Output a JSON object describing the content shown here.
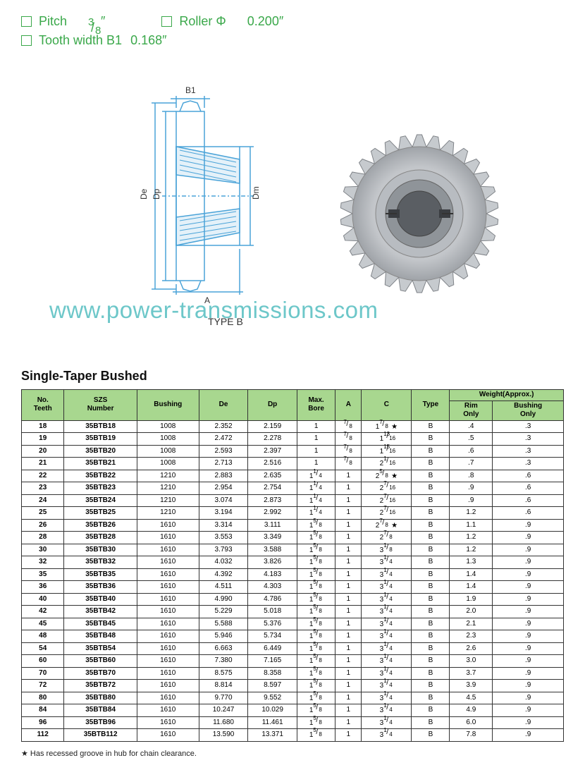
{
  "specs": {
    "pitch_label": "Pitch",
    "pitch_num": "3",
    "pitch_den": "8",
    "pitch_suffix": "″",
    "roller_label": "Roller Φ",
    "roller_value": "0.200″",
    "tooth_label": "Tooth width B1",
    "tooth_value": "0.168″"
  },
  "watermark": "www.power-transmissions.com",
  "type_label": "TYPE B",
  "section_title": "Single-Taper Bushed",
  "drawing": {
    "labels": {
      "B1": "B1",
      "De": "De",
      "Dp": "Dp",
      "Dm": "Dm",
      "A": "A"
    },
    "outline_color": "#4aa3d8",
    "hatch_color": "#4aa3d8"
  },
  "sprocket": {
    "fill": "#c9ccd0",
    "stroke": "#7a7e84",
    "boss": "#9ea2a7"
  },
  "table": {
    "header_bg": "#a8d78f",
    "weight_header": "Weight(Approx.)",
    "columns": [
      "No.\nTeeth",
      "SZS\nNumber",
      "Bushing",
      "De",
      "Dp",
      "Max.\nBore",
      "A",
      "C",
      "Type",
      "Rim\nOnly",
      "Bushing\nOnly"
    ],
    "groups": [
      [
        {
          "teeth": "18",
          "szs": "35BTB18",
          "bush": "1008",
          "de": "2.352",
          "dp": "2.159",
          "maxb": "1",
          "a": "7/8",
          "c": "1 7/8 ★",
          "type": "B",
          "rim": ".4",
          "bonly": ".3"
        },
        {
          "teeth": "19",
          "szs": "35BTB19",
          "bush": "1008",
          "de": "2.472",
          "dp": "2.278",
          "maxb": "1",
          "a": "7/8",
          "c": "1 13/16",
          "type": "B",
          "rim": ".5",
          "bonly": ".3"
        },
        {
          "teeth": "20",
          "szs": "35BTB20",
          "bush": "1008",
          "de": "2.593",
          "dp": "2.397",
          "maxb": "1",
          "a": "7/8",
          "c": "1 15/16",
          "type": "B",
          "rim": ".6",
          "bonly": ".3"
        },
        {
          "teeth": "21",
          "szs": "35BTB21",
          "bush": "1008",
          "de": "2.713",
          "dp": "2.516",
          "maxb": "1",
          "a": "7/8",
          "c": "2 1/16",
          "type": "B",
          "rim": ".7",
          "bonly": ".3"
        }
      ],
      [
        {
          "teeth": "22",
          "szs": "35BTB22",
          "bush": "1210",
          "de": "2.883",
          "dp": "2.635",
          "maxb": "1 1/4",
          "a": "1",
          "c": "2 5/8 ★",
          "type": "B",
          "rim": ".8",
          "bonly": ".6"
        },
        {
          "teeth": "23",
          "szs": "35BTB23",
          "bush": "1210",
          "de": "2.954",
          "dp": "2.754",
          "maxb": "1 1/4",
          "a": "1",
          "c": "2 7/16",
          "type": "B",
          "rim": ".9",
          "bonly": ".6"
        },
        {
          "teeth": "24",
          "szs": "35BTB24",
          "bush": "1210",
          "de": "3.074",
          "dp": "2.873",
          "maxb": "1 1/4",
          "a": "1",
          "c": "2 7/16",
          "type": "B",
          "rim": ".9",
          "bonly": ".6"
        },
        {
          "teeth": "25",
          "szs": "35BTB25",
          "bush": "1210",
          "de": "3.194",
          "dp": "2.992",
          "maxb": "1 1/4",
          "a": "1",
          "c": "2 7/16",
          "type": "B",
          "rim": "1.2",
          "bonly": ".6"
        }
      ],
      [
        {
          "teeth": "26",
          "szs": "35BTB26",
          "bush": "1610",
          "de": "3.314",
          "dp": "3.111",
          "maxb": "1 5/8",
          "a": "1",
          "c": "2 7/8 ★",
          "type": "B",
          "rim": "1.1",
          "bonly": ".9"
        },
        {
          "teeth": "28",
          "szs": "35BTB28",
          "bush": "1610",
          "de": "3.553",
          "dp": "3.349",
          "maxb": "1 5/8",
          "a": "1",
          "c": "2 7/8",
          "type": "B",
          "rim": "1.2",
          "bonly": ".9"
        },
        {
          "teeth": "30",
          "szs": "35BTB30",
          "bush": "1610",
          "de": "3.793",
          "dp": "3.588",
          "maxb": "1 5/8",
          "a": "1",
          "c": "3 1/8",
          "type": "B",
          "rim": "1.2",
          "bonly": ".9"
        },
        {
          "teeth": "32",
          "szs": "35BTB32",
          "bush": "1610",
          "de": "4.032",
          "dp": "3.826",
          "maxb": "1 5/8",
          "a": "1",
          "c": "3 1/4",
          "type": "B",
          "rim": "1.3",
          "bonly": ".9"
        }
      ],
      [
        {
          "teeth": "35",
          "szs": "35BTB35",
          "bush": "1610",
          "de": "4.392",
          "dp": "4.183",
          "maxb": "1 5/8",
          "a": "1",
          "c": "3 1/4",
          "type": "B",
          "rim": "1.4",
          "bonly": ".9"
        },
        {
          "teeth": "36",
          "szs": "35BTB36",
          "bush": "1610",
          "de": "4.511",
          "dp": "4.303",
          "maxb": "1 5/8",
          "a": "1",
          "c": "3 1/4",
          "type": "B",
          "rim": "1.4",
          "bonly": ".9"
        },
        {
          "teeth": "40",
          "szs": "35BTB40",
          "bush": "1610",
          "de": "4.990",
          "dp": "4.786",
          "maxb": "1 5/8",
          "a": "1",
          "c": "3 1/4",
          "type": "B",
          "rim": "1.9",
          "bonly": ".9"
        },
        {
          "teeth": "42",
          "szs": "35BTB42",
          "bush": "1610",
          "de": "5.229",
          "dp": "5.018",
          "maxb": "1 5/8",
          "a": "1",
          "c": "3 1/4",
          "type": "B",
          "rim": "2.0",
          "bonly": ".9"
        }
      ],
      [
        {
          "teeth": "45",
          "szs": "35BTB45",
          "bush": "1610",
          "de": "5.588",
          "dp": "5.376",
          "maxb": "1 5/8",
          "a": "1",
          "c": "3 1/4",
          "type": "B",
          "rim": "2.1",
          "bonly": ".9"
        },
        {
          "teeth": "48",
          "szs": "35BTB48",
          "bush": "1610",
          "de": "5.946",
          "dp": "5.734",
          "maxb": "1 5/8",
          "a": "1",
          "c": "3 1/4",
          "type": "B",
          "rim": "2.3",
          "bonly": ".9"
        },
        {
          "teeth": "54",
          "szs": "35BTB54",
          "bush": "1610",
          "de": "6.663",
          "dp": "6.449",
          "maxb": "1 5/8",
          "a": "1",
          "c": "3 1/4",
          "type": "B",
          "rim": "2.6",
          "bonly": ".9"
        },
        {
          "teeth": "60",
          "szs": "35BTB60",
          "bush": "1610",
          "de": "7.380",
          "dp": "7.165",
          "maxb": "1 5/8",
          "a": "1",
          "c": "3 1/4",
          "type": "B",
          "rim": "3.0",
          "bonly": ".9"
        }
      ],
      [
        {
          "teeth": "70",
          "szs": "35BTB70",
          "bush": "1610",
          "de": "8.575",
          "dp": "8.358",
          "maxb": "1 5/8",
          "a": "1",
          "c": "3 1/4",
          "type": "B",
          "rim": "3.7",
          "bonly": ".9"
        },
        {
          "teeth": "72",
          "szs": "35BTB72",
          "bush": "1610",
          "de": "8.814",
          "dp": "8.597",
          "maxb": "1 5/8",
          "a": "1",
          "c": "3 1/4",
          "type": "B",
          "rim": "3.9",
          "bonly": ".9"
        },
        {
          "teeth": "80",
          "szs": "35BTB80",
          "bush": "1610",
          "de": "9.770",
          "dp": "9.552",
          "maxb": "1 5/8",
          "a": "1",
          "c": "3 1/4",
          "type": "B",
          "rim": "4.5",
          "bonly": ".9"
        },
        {
          "teeth": "84",
          "szs": "35BTB84",
          "bush": "1610",
          "de": "10.247",
          "dp": "10.029",
          "maxb": "1 5/8",
          "a": "1",
          "c": "3 1/4",
          "type": "B",
          "rim": "4.9",
          "bonly": ".9"
        }
      ],
      [
        {
          "teeth": "96",
          "szs": "35BTB96",
          "bush": "1610",
          "de": "11.680",
          "dp": "11.461",
          "maxb": "1 5/8",
          "a": "1",
          "c": "3 1/4",
          "type": "B",
          "rim": "6.0",
          "bonly": ".9"
        },
        {
          "teeth": "112",
          "szs": "35BTB112",
          "bush": "1610",
          "de": "13.590",
          "dp": "13.371",
          "maxb": "1 5/8",
          "a": "1",
          "c": "3 1/4",
          "type": "B",
          "rim": "7.8",
          "bonly": ".9"
        }
      ]
    ]
  },
  "footnote": "★ Has recessed groove in hub for chain clearance."
}
